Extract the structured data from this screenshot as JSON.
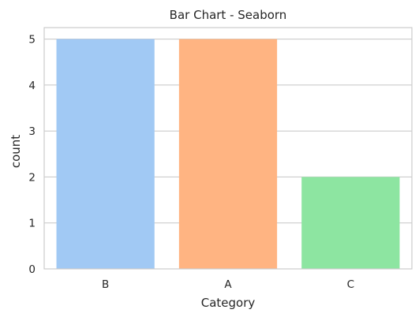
{
  "chart_data": {
    "type": "bar",
    "title": "Bar Chart - Seaborn",
    "xlabel": "Category",
    "ylabel": "count",
    "categories": [
      "B",
      "A",
      "C"
    ],
    "values": [
      5,
      5,
      2
    ],
    "colors": [
      "#a1c9f4",
      "#ffb482",
      "#8de5a1"
    ],
    "ylim": [
      0,
      5.25
    ],
    "yticks": [
      0,
      1,
      2,
      3,
      4,
      5
    ],
    "grid": true,
    "legend": "none"
  }
}
